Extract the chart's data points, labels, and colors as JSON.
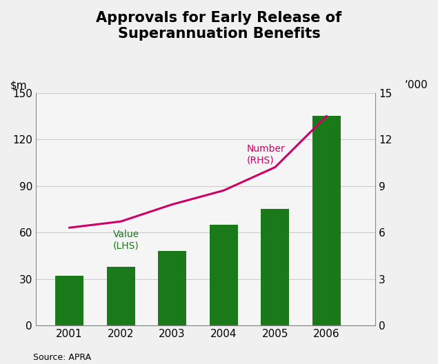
{
  "title": "Approvals for Early Release of\nSuperannuation Benefits",
  "years": [
    2001,
    2002,
    2003,
    2004,
    2005,
    2006
  ],
  "bar_values": [
    32,
    38,
    48,
    65,
    75,
    135
  ],
  "line_values": [
    6.3,
    6.7,
    7.8,
    8.7,
    10.2,
    13.5
  ],
  "bar_color": "#1a7a1a",
  "line_color": "#cc0066",
  "rhs_label": "‘000",
  "lhs_ylim": [
    0,
    150
  ],
  "rhs_ylim": [
    0,
    15
  ],
  "lhs_yticks": [
    0,
    30,
    60,
    90,
    120,
    150
  ],
  "rhs_yticks": [
    0,
    3,
    6,
    9,
    12,
    15
  ],
  "source_text": "Source: APRA",
  "bar_label": "Value\n(LHS)",
  "line_label": "Number\n(RHS)",
  "outer_bg": "#f0f0f0",
  "plot_bg": "#f5f5f5",
  "grid_color": "#cccccc",
  "title_fontsize": 15,
  "tick_fontsize": 11,
  "label_fontsize": 10,
  "bar_width": 0.55
}
